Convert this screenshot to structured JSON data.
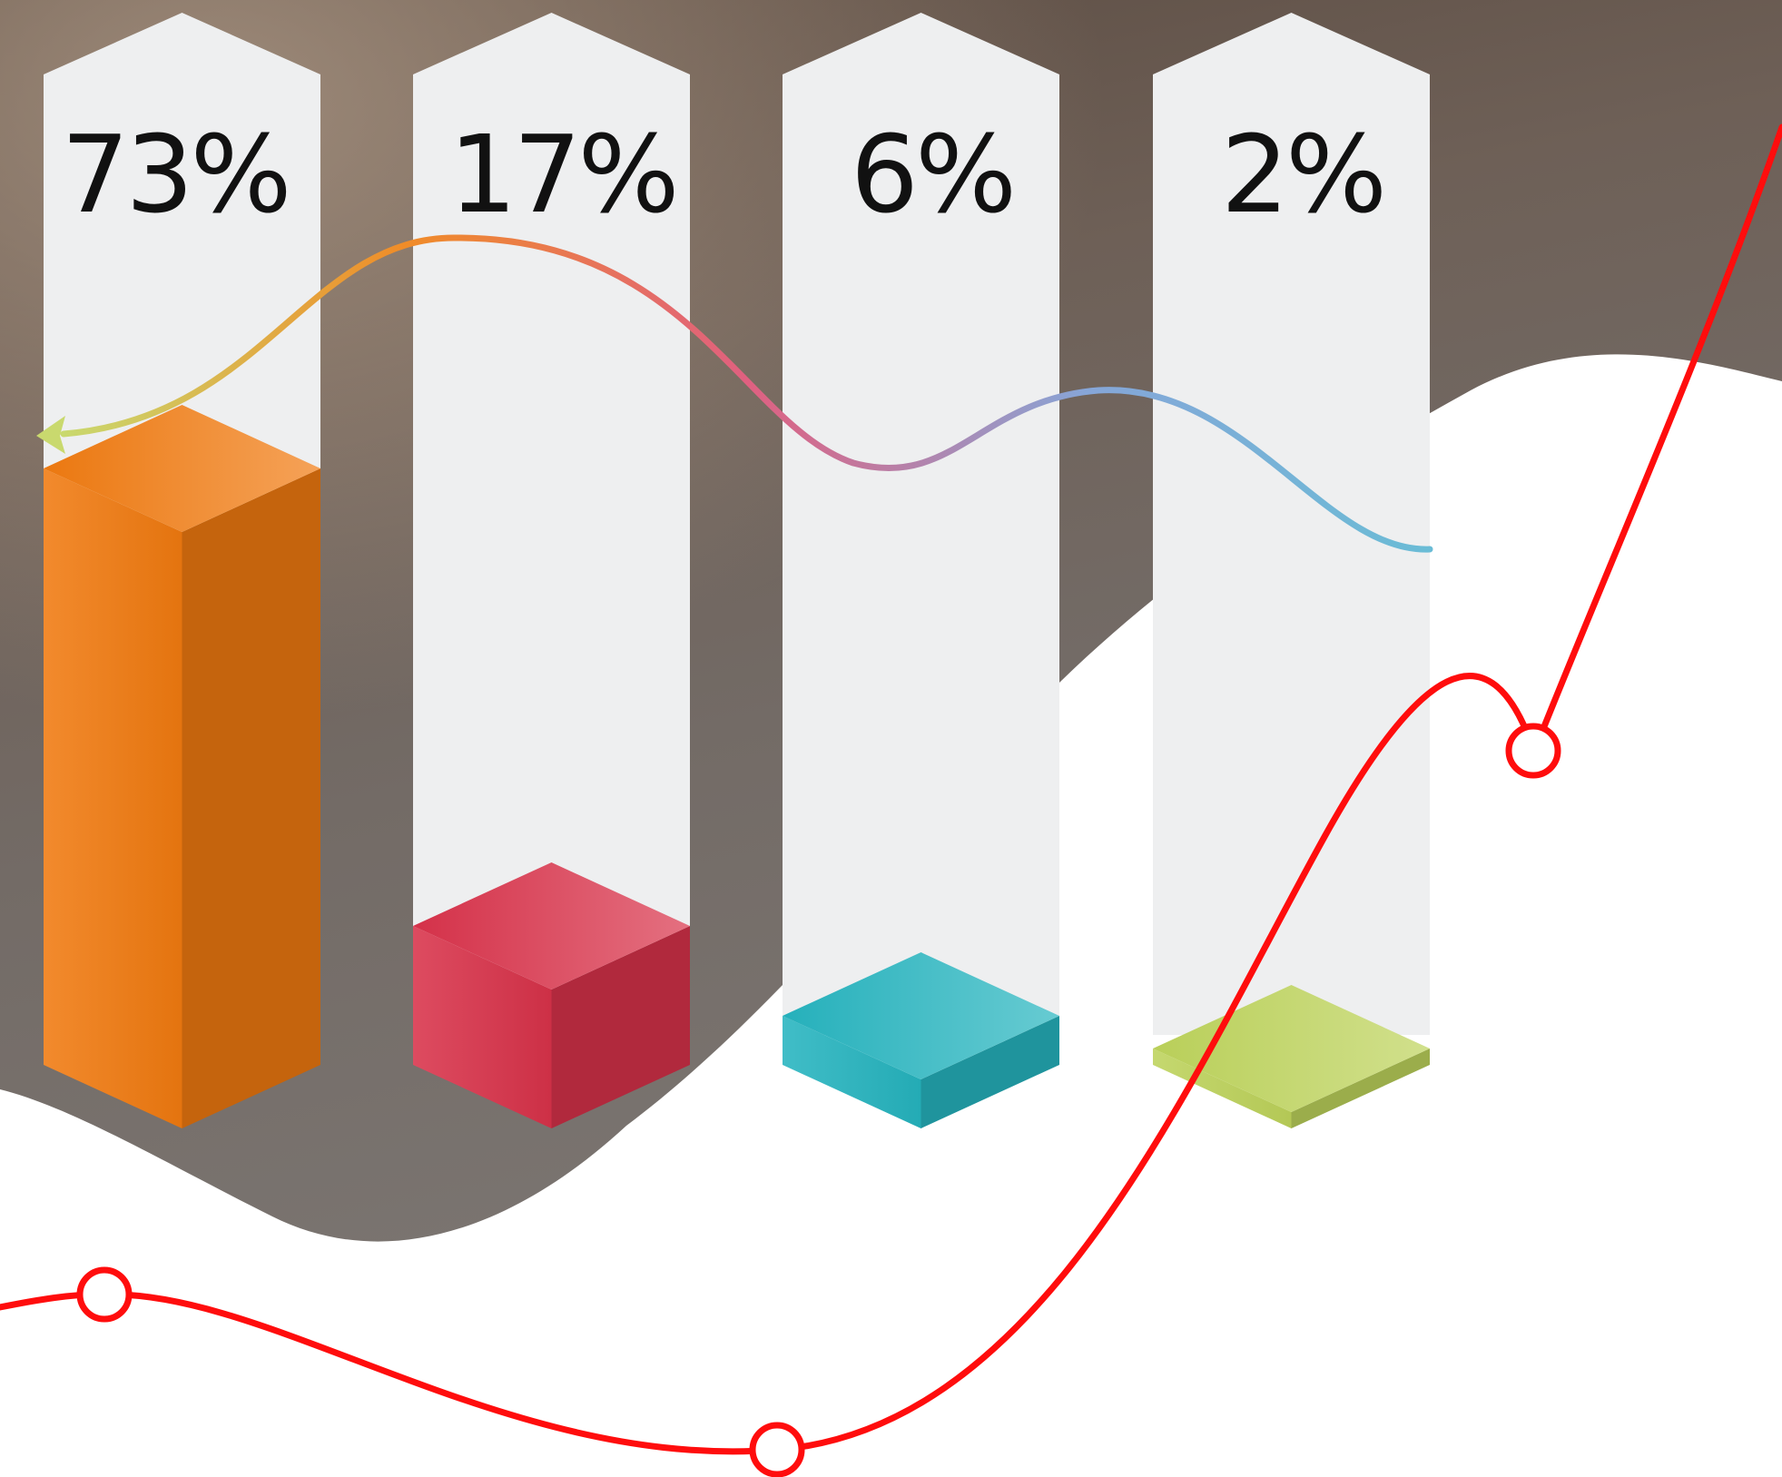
{
  "chart_data": {
    "type": "bar",
    "categories": [
      "",
      "",
      "",
      ""
    ],
    "values": [
      73,
      17,
      6,
      2
    ],
    "value_labels": [
      "73%",
      "17%",
      "6%",
      "2%"
    ],
    "unit": "%",
    "title": "",
    "xlabel": "",
    "ylabel": "",
    "legend": "none",
    "grid": false,
    "style": "3d-isometric-columns"
  },
  "colors": {
    "bars": [
      "#f07a10",
      "#d8324a",
      "#26b4bf",
      "#bdd35b"
    ],
    "column_background": "#eeeff0",
    "red_line": "#ff0d0d",
    "gradient_wave": [
      "#c9d96e",
      "#f08c28",
      "#e06080",
      "#86a6d8",
      "#6abcd6"
    ],
    "photo_background": "#6f6a66",
    "page": "#ffffff"
  }
}
